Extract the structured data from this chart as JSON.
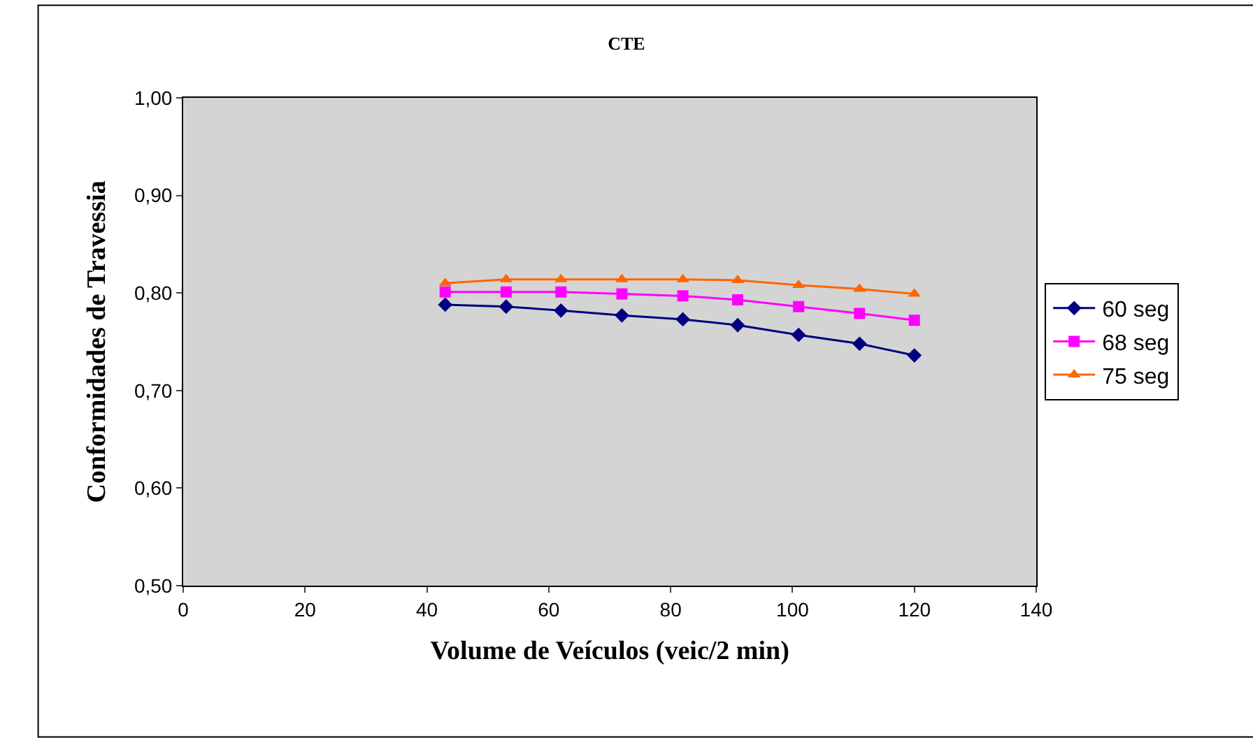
{
  "chart_data": {
    "type": "line",
    "title": "CTE",
    "xlabel": "Volume de Veículos (veic/2 min)",
    "ylabel": "Conformidades de Travessia",
    "x": [
      43,
      53,
      62,
      72,
      82,
      91,
      101,
      111,
      120
    ],
    "series": [
      {
        "name": "60 seg",
        "color": "#000080",
        "marker": "diamond",
        "values": [
          0.788,
          0.786,
          0.782,
          0.777,
          0.773,
          0.767,
          0.757,
          0.748,
          0.736
        ]
      },
      {
        "name": "68 seg",
        "color": "#ff00ff",
        "marker": "square",
        "values": [
          0.801,
          0.801,
          0.801,
          0.799,
          0.797,
          0.793,
          0.786,
          0.779,
          0.772
        ]
      },
      {
        "name": "75 seg",
        "color": "#ff6600",
        "marker": "triangle",
        "values": [
          0.81,
          0.814,
          0.814,
          0.814,
          0.814,
          0.813,
          0.808,
          0.804,
          0.799
        ]
      }
    ],
    "xlim": [
      0,
      140
    ],
    "xticks": [
      0,
      20,
      40,
      60,
      80,
      100,
      120,
      140
    ],
    "ylim": [
      0.5,
      1.0
    ],
    "yticks": [
      {
        "value": 0.5,
        "label": "0,50"
      },
      {
        "value": 0.6,
        "label": "0,60"
      },
      {
        "value": 0.7,
        "label": "0,70"
      },
      {
        "value": 0.8,
        "label": "0,80"
      },
      {
        "value": 0.9,
        "label": "0,90"
      },
      {
        "value": 1.0,
        "label": "1,00"
      }
    ],
    "grid": false,
    "legend": "right",
    "line_style": "solid"
  }
}
